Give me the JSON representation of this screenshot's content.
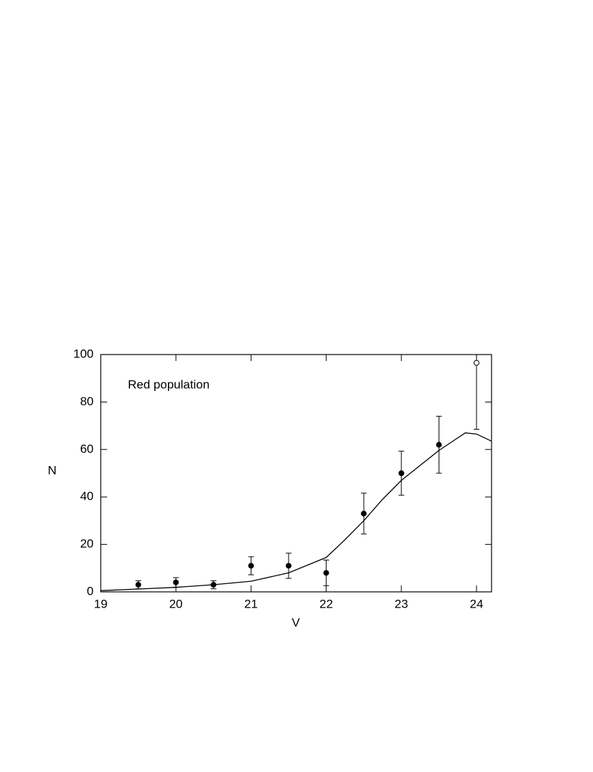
{
  "chart_data": {
    "type": "errorbar-scatter",
    "xlabel": "V",
    "ylabel": "N",
    "annotation": "Red population",
    "x": [
      19.5,
      20,
      20.5,
      21,
      21.5,
      22,
      22.5,
      23,
      23.5,
      24
    ],
    "values": [
      3,
      4,
      3,
      11,
      11,
      8,
      33,
      50,
      62,
      96.5
    ],
    "errors": [
      1.7,
      2,
      1.7,
      3.8,
      5.3,
      5.4,
      8.6,
      9.3,
      12,
      28
    ],
    "marker_fill": [
      "#000",
      "#000",
      "#000",
      "#000",
      "#000",
      "#000",
      "#000",
      "#000",
      "#000",
      "#fff"
    ],
    "color": "#000",
    "fit": {
      "x": [
        19,
        19.5,
        20,
        20.5,
        21,
        21.5,
        22,
        22.25,
        22.5,
        22.75,
        23,
        23.5,
        23.85,
        24,
        24.2
      ],
      "values": [
        0.5,
        1.2,
        1.9,
        3,
        4.5,
        8,
        14.5,
        22,
        30,
        39,
        47,
        59.6,
        67,
        66.5,
        63.5
      ]
    },
    "xlim": [
      19,
      24.2
    ],
    "ylim": [
      0,
      100
    ],
    "xticks": [
      19,
      20,
      21,
      22,
      23,
      24
    ],
    "yticks": [
      0,
      20,
      40,
      60,
      80,
      100
    ]
  }
}
